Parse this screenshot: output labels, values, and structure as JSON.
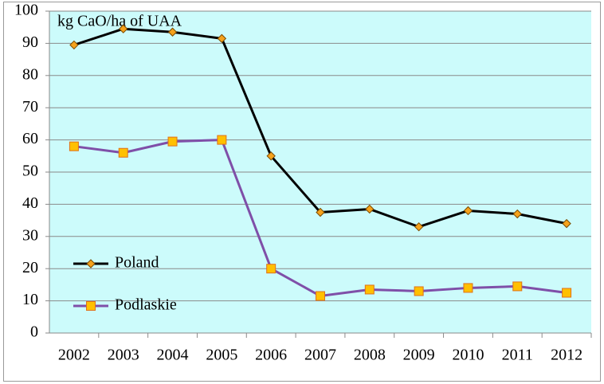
{
  "chart_data": {
    "type": "line",
    "y_label": "kg CaO/ha of UAA",
    "categories": [
      "2002",
      "2003",
      "2004",
      "2005",
      "2006",
      "2007",
      "2008",
      "2009",
      "2010",
      "2011",
      "2012"
    ],
    "series": [
      {
        "name": "Poland",
        "color": "#000000",
        "marker": "diamond",
        "marker_color": "#f5a21c",
        "values": [
          89.5,
          94.5,
          93.5,
          91.5,
          55,
          37.5,
          38.5,
          33,
          38,
          37,
          34
        ]
      },
      {
        "name": "Podlaskie",
        "color": "#7f4fa8",
        "marker": "square",
        "marker_color": "#ffc000",
        "values": [
          58,
          56,
          59.5,
          60,
          20,
          11.5,
          13.5,
          13,
          14,
          14.5,
          12.5
        ]
      }
    ],
    "ylim": [
      0,
      100
    ],
    "yticks": [
      0,
      10,
      20,
      30,
      40,
      50,
      60,
      70,
      80,
      90,
      100
    ],
    "grid": true,
    "legend": "left",
    "plot_background": "#ccfbfb"
  }
}
